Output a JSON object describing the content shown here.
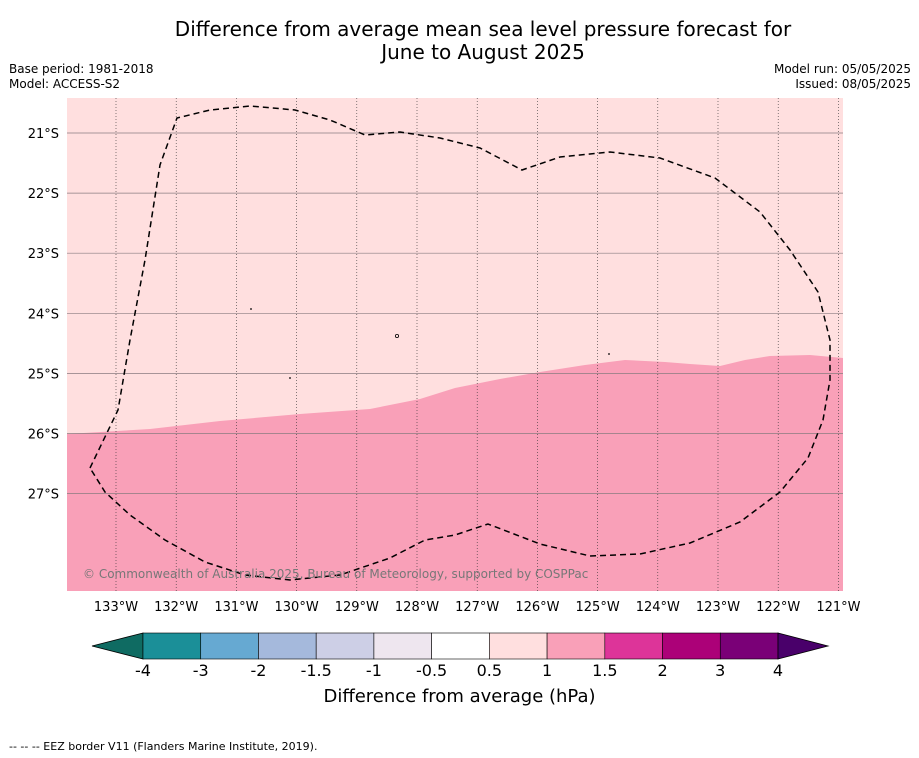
{
  "title_line1": "Difference from average mean sea level pressure forecast for",
  "title_line2": "June to August 2025",
  "meta_left": [
    "Base period: 1981-2018",
    "Model: ACCESS-S2"
  ],
  "meta_right": [
    "Model run: 05/05/2025",
    "Issued: 08/05/2025"
  ],
  "lon_ticks": [
    "133°W",
    "132°W",
    "131°W",
    "130°W",
    "129°W",
    "128°W",
    "127°W",
    "126°W",
    "125°W",
    "124°W",
    "123°W",
    "122°W",
    "121°W"
  ],
  "lat_ticks": [
    "21°S",
    "22°S",
    "23°S",
    "24°S",
    "25°S",
    "26°S",
    "27°S"
  ],
  "copyright": "© Commonwealth of Australia 2025, Bureau of Meteorology, supported by COSPPac",
  "colorbar": {
    "ticks": [
      "-4",
      "-3",
      "-2",
      "-1.5",
      "-1",
      "-0.5",
      "0.5",
      "1",
      "1.5",
      "2",
      "3",
      "4"
    ],
    "colors": [
      "#0f6b62",
      "#1b8f98",
      "#66a9d2",
      "#a5b9dc",
      "#cdcfe6",
      "#eee6ef",
      "#ffffff",
      "#ffdfdf",
      "#f9a0b8",
      "#dd3499",
      "#ac0178",
      "#7a0077",
      "#49006a"
    ],
    "label": "Difference from average (hPa)"
  },
  "map_colors": {
    "class_0_5_to_1": "#ffdfdf",
    "class_1_to_1_5": "#f9a0b8"
  },
  "footer": "--  --  -- EEZ border V11 (Flanders Marine Institute, 2019)."
}
